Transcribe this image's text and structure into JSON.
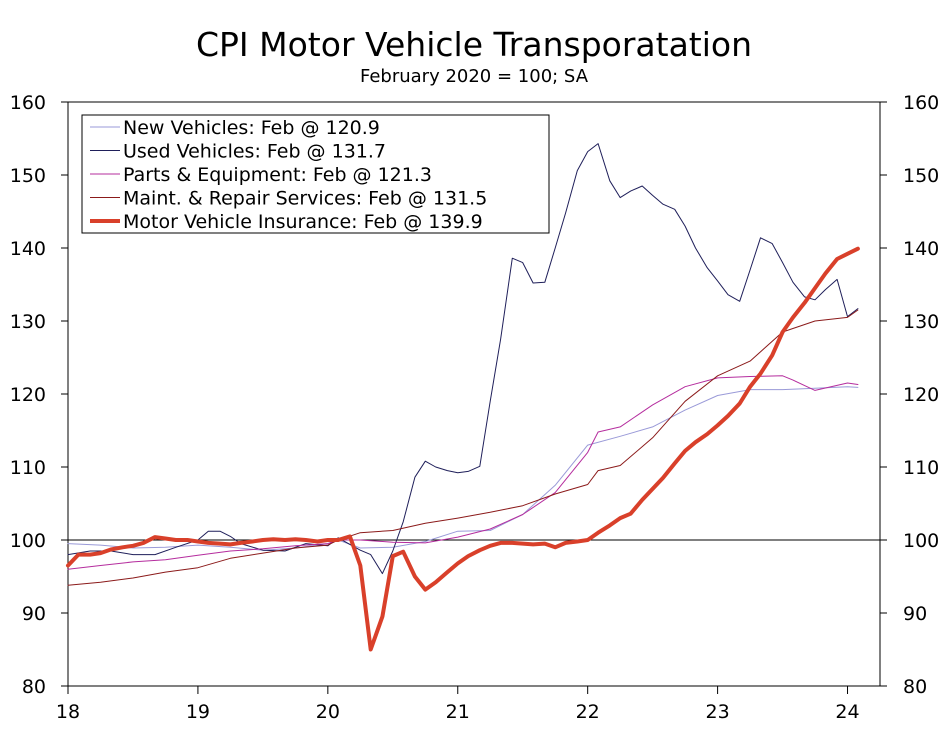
{
  "chart_data": {
    "type": "line",
    "title": "CPI Motor Vehicle Transporatation",
    "subtitle": "February 2020 = 100; SA",
    "x_range": [
      18.0,
      24.25
    ],
    "ylim": [
      80,
      160
    ],
    "y_ticks": [
      80,
      90,
      100,
      110,
      120,
      130,
      140,
      150,
      160
    ],
    "x_ticks": [
      {
        "value": 18,
        "label": "18"
      },
      {
        "value": 19,
        "label": "19"
      },
      {
        "value": 20,
        "label": "20"
      },
      {
        "value": 21,
        "label": "21"
      },
      {
        "value": 22,
        "label": "22"
      },
      {
        "value": 23,
        "label": "23"
      },
      {
        "value": 24,
        "label": "24"
      }
    ],
    "reference_line": 100,
    "legend_position": "top-left",
    "series": [
      {
        "name": "New Vehicles: Feb @ 120.9",
        "color": "#9a9ad8",
        "width": 1,
        "x": [
          18.0,
          18.25,
          18.5,
          18.75,
          19.0,
          19.25,
          19.5,
          19.75,
          20.0,
          20.08,
          20.25,
          20.5,
          20.75,
          21.0,
          21.25,
          21.5,
          21.75,
          22.0,
          22.25,
          22.5,
          22.75,
          23.0,
          23.25,
          23.5,
          23.75,
          24.0,
          24.08
        ],
        "values": [
          99.5,
          99.3,
          98.9,
          99.0,
          99.3,
          99.0,
          98.6,
          98.9,
          99.5,
          100.0,
          98.9,
          99.0,
          99.8,
          101.2,
          101.3,
          103.5,
          107.5,
          113.0,
          114.2,
          115.5,
          117.8,
          119.8,
          120.6,
          120.6,
          120.8,
          121.0,
          120.9
        ]
      },
      {
        "name": "Used Vehicles: Feb @ 131.7",
        "color": "#1f1f5a",
        "width": 1,
        "x": [
          18.0,
          18.17,
          18.33,
          18.5,
          18.67,
          18.83,
          19.0,
          19.08,
          19.17,
          19.25,
          19.33,
          19.5,
          19.67,
          19.83,
          20.0,
          20.08,
          20.17,
          20.25,
          20.33,
          20.42,
          20.5,
          20.58,
          20.67,
          20.75,
          20.83,
          20.92,
          21.0,
          21.08,
          21.17,
          21.25,
          21.33,
          21.42,
          21.5,
          21.58,
          21.67,
          21.75,
          21.83,
          21.92,
          22.0,
          22.08,
          22.17,
          22.25,
          22.33,
          22.42,
          22.5,
          22.58,
          22.67,
          22.75,
          22.83,
          22.92,
          23.0,
          23.08,
          23.17,
          23.25,
          23.33,
          23.42,
          23.5,
          23.58,
          23.67,
          23.75,
          23.83,
          23.92,
          24.0,
          24.08
        ],
        "values": [
          98.0,
          98.5,
          98.5,
          98.0,
          98.0,
          99.0,
          100.0,
          101.2,
          101.2,
          100.5,
          99.5,
          98.6,
          98.5,
          99.5,
          99.2,
          100.3,
          99.4,
          98.6,
          98.0,
          95.4,
          98.5,
          102.5,
          108.6,
          110.8,
          110.0,
          109.5,
          109.2,
          109.4,
          110.1,
          119.0,
          127.5,
          138.6,
          138.0,
          135.2,
          135.3,
          140.0,
          144.8,
          150.6,
          153.2,
          154.3,
          149.2,
          146.9,
          147.8,
          148.5,
          147.2,
          146.0,
          145.3,
          143.0,
          140.0,
          137.3,
          135.5,
          133.6,
          132.7,
          137.0,
          141.4,
          140.6,
          138.0,
          135.3,
          133.3,
          132.9,
          134.3,
          135.7,
          130.6,
          131.7
        ]
      },
      {
        "name": "Parts & Equipment: Feb @ 121.3",
        "color": "#b52d9e",
        "width": 1,
        "x": [
          18.0,
          18.25,
          18.5,
          18.75,
          19.0,
          19.25,
          19.5,
          19.75,
          20.0,
          20.08,
          20.25,
          20.5,
          20.75,
          21.0,
          21.25,
          21.5,
          21.75,
          22.0,
          22.08,
          22.25,
          22.5,
          22.75,
          23.0,
          23.25,
          23.5,
          23.58,
          23.75,
          24.0,
          24.08
        ],
        "values": [
          96.0,
          96.5,
          97.0,
          97.3,
          97.9,
          98.5,
          98.8,
          99.2,
          99.5,
          100.0,
          100.0,
          99.7,
          99.6,
          100.4,
          101.5,
          103.5,
          106.5,
          112.0,
          114.8,
          115.5,
          118.5,
          121.0,
          122.2,
          122.4,
          122.5,
          121.9,
          120.5,
          121.5,
          121.3
        ]
      },
      {
        "name": "Maint. & Repair Services: Feb @ 131.5",
        "color": "#8b1a1a",
        "width": 1,
        "x": [
          18.0,
          18.25,
          18.5,
          18.75,
          19.0,
          19.25,
          19.5,
          19.75,
          20.0,
          20.08,
          20.25,
          20.5,
          20.75,
          21.0,
          21.25,
          21.5,
          21.75,
          22.0,
          22.08,
          22.25,
          22.5,
          22.75,
          23.0,
          23.25,
          23.5,
          23.75,
          24.0,
          24.08
        ],
        "values": [
          93.8,
          94.2,
          94.8,
          95.6,
          96.2,
          97.5,
          98.2,
          98.9,
          99.3,
          100.0,
          101.0,
          101.3,
          102.3,
          103.0,
          103.8,
          104.7,
          106.3,
          107.6,
          109.5,
          110.2,
          114.0,
          119.0,
          122.5,
          124.5,
          128.5,
          130.0,
          130.5,
          131.5
        ]
      },
      {
        "name": "Motor Vehicle Insurance: Feb @ 139.9",
        "color": "#d9402a",
        "width": 4,
        "x": [
          18.0,
          18.08,
          18.17,
          18.25,
          18.33,
          18.42,
          18.5,
          18.58,
          18.67,
          18.75,
          18.83,
          18.92,
          19.0,
          19.08,
          19.17,
          19.25,
          19.33,
          19.42,
          19.5,
          19.58,
          19.67,
          19.75,
          19.83,
          19.92,
          20.0,
          20.08,
          20.17,
          20.25,
          20.33,
          20.42,
          20.5,
          20.58,
          20.67,
          20.75,
          20.83,
          20.92,
          21.0,
          21.08,
          21.17,
          21.25,
          21.33,
          21.42,
          21.5,
          21.58,
          21.67,
          21.75,
          21.83,
          21.92,
          22.0,
          22.08,
          22.17,
          22.25,
          22.33,
          22.42,
          22.5,
          22.58,
          22.67,
          22.75,
          22.83,
          22.92,
          23.0,
          23.08,
          23.17,
          23.25,
          23.33,
          23.42,
          23.5,
          23.58,
          23.67,
          23.75,
          23.83,
          23.92,
          24.0,
          24.08
        ],
        "values": [
          96.5,
          98.0,
          98.0,
          98.2,
          98.7,
          99.0,
          99.2,
          99.6,
          100.4,
          100.2,
          100.0,
          100.0,
          99.8,
          99.6,
          99.5,
          99.4,
          99.6,
          99.8,
          100.0,
          100.1,
          100.0,
          100.1,
          100.0,
          99.8,
          100.0,
          100.0,
          100.5,
          96.5,
          85.0,
          89.5,
          97.8,
          98.4,
          95.0,
          93.2,
          94.2,
          95.6,
          96.8,
          97.8,
          98.6,
          99.2,
          99.6,
          99.6,
          99.5,
          99.4,
          99.5,
          99.0,
          99.6,
          99.8,
          100.0,
          101.0,
          102.0,
          103.0,
          103.6,
          105.5,
          107.0,
          108.5,
          110.5,
          112.2,
          113.4,
          114.5,
          115.7,
          117.0,
          118.7,
          121.0,
          122.8,
          125.3,
          128.5,
          130.5,
          132.5,
          134.5,
          136.5,
          138.5,
          139.2,
          139.9
        ]
      }
    ]
  }
}
